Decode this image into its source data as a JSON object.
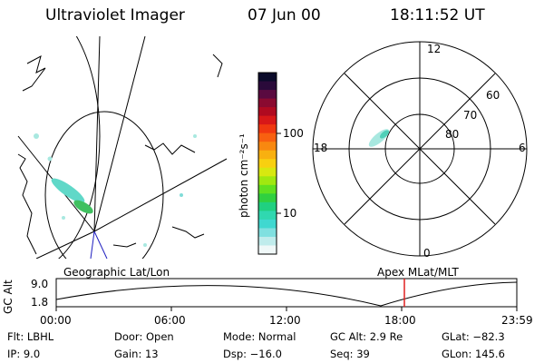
{
  "header": {
    "instrument": "Ultraviolet Imager",
    "date": "07 Jun 00",
    "time": "18:11:52 UT"
  },
  "colorbar": {
    "label": "photon cm⁻²s⁻¹",
    "ticks": [
      "100",
      "10"
    ],
    "colors": [
      "#0a0a2a",
      "#2a0a3a",
      "#5a0a40",
      "#8a0a30",
      "#b00a20",
      "#d81818",
      "#f03810",
      "#f86010",
      "#f88810",
      "#f8b010",
      "#f8d010",
      "#d8e810",
      "#a0e810",
      "#60e020",
      "#30d040",
      "#20d080",
      "#30d8b0",
      "#40d8d0",
      "#80e0e0",
      "#c0ecec",
      "#f0f8f8"
    ]
  },
  "polar": {
    "mlt_labels": {
      "top": "12",
      "left": "18",
      "right": "6",
      "bottom": "0"
    },
    "lat_labels": [
      "60",
      "70",
      "80"
    ]
  },
  "left_panel": {
    "label": "Geographic Lat/Lon"
  },
  "right_label": "Apex MLat/MLT",
  "orbit": {
    "ylabel": "GC Alt",
    "yticks": [
      "9.0",
      "1.8"
    ],
    "xticks": [
      "00:00",
      "06:00",
      "12:00",
      "18:00",
      "23:59"
    ],
    "marker_color": "#e02020"
  },
  "info": {
    "filter": "Flt: LBHL",
    "ip": "IP: 9.0",
    "door": "Door: Open",
    "gain": "Gain: 13",
    "mode": "Mode: Normal",
    "dsp": "Dsp: −16.0",
    "gc_alt": "GC Alt: 2.9 Re",
    "seq": "Seq: 39",
    "glat": "GLat: −82.3",
    "glon": "GLon: 145.6"
  }
}
